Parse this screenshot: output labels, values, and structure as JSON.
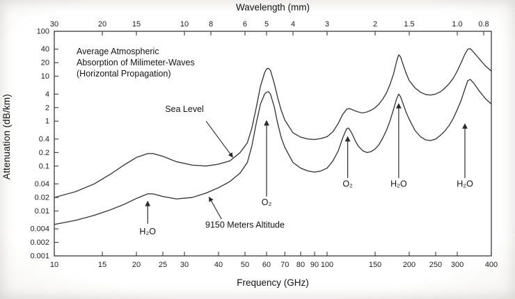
{
  "figure": {
    "title_lines": [
      "Average Atmospheric",
      "Absorption of Milimeter-Waves",
      "(Horizontal Propagation)"
    ],
    "top_axis": {
      "label": "Wavelength (mm)",
      "ticks": [
        "30",
        "20",
        "15",
        "10",
        "8",
        "6",
        "5",
        "4",
        "3",
        "2",
        "1.5",
        "1.0",
        "0.8"
      ],
      "unit": "mm"
    },
    "x_axis": {
      "label": "Frequency (GHz)",
      "ticks": [
        "10",
        "15",
        "20",
        "25",
        "30",
        "40",
        "50",
        "60",
        "70",
        "80",
        "90",
        "100",
        "150",
        "200",
        "250",
        "300",
        "400"
      ],
      "min": 10,
      "max": 400,
      "scale": "log"
    },
    "y_axis": {
      "label": "Attenuation (dB/km)",
      "ticks": [
        "100",
        "40",
        "20",
        "10",
        "4",
        "2",
        "1",
        "0.4",
        "0.2",
        "0.1",
        "0.04",
        "0.02",
        "0.01",
        "0.004",
        "0.002",
        "0.001"
      ],
      "min": 0.001,
      "max": 100,
      "scale": "log"
    },
    "ink_color": "#3a3a3a"
  },
  "chart_data": {
    "type": "line",
    "title": "Average Atmospheric Absorption of Milimeter-Waves (Horizontal Propagation)",
    "xlabel": "Frequency (GHz)",
    "ylabel": "Attenuation (dB/km)",
    "x2label": "Wavelength (mm)",
    "xlim": [
      10,
      400
    ],
    "ylim": [
      0.001,
      100
    ],
    "xscale": "log",
    "yscale": "log",
    "grid": false,
    "series": [
      {
        "name": "Sea Level",
        "points": [
          [
            10,
            0.02
          ],
          [
            12,
            0.027
          ],
          [
            14,
            0.04
          ],
          [
            16,
            0.065
          ],
          [
            18,
            0.105
          ],
          [
            20,
            0.155
          ],
          [
            22,
            0.19
          ],
          [
            23,
            0.19
          ],
          [
            25,
            0.165
          ],
          [
            28,
            0.125
          ],
          [
            32,
            0.105
          ],
          [
            36,
            0.1
          ],
          [
            40,
            0.11
          ],
          [
            44,
            0.13
          ],
          [
            48,
            0.2
          ],
          [
            51,
            0.33
          ],
          [
            53,
            0.7
          ],
          [
            55,
            2.0
          ],
          [
            57,
            6.0
          ],
          [
            59,
            12
          ],
          [
            60,
            14.5
          ],
          [
            61,
            15
          ],
          [
            62,
            13.5
          ],
          [
            64,
            7.0
          ],
          [
            66,
            3.2
          ],
          [
            68,
            1.7
          ],
          [
            70,
            1.05
          ],
          [
            75,
            0.55
          ],
          [
            80,
            0.44
          ],
          [
            85,
            0.4
          ],
          [
            90,
            0.39
          ],
          [
            95,
            0.41
          ],
          [
            100,
            0.45
          ],
          [
            105,
            0.58
          ],
          [
            110,
            0.9
          ],
          [
            114,
            1.4
          ],
          [
            118,
            1.85
          ],
          [
            121,
            1.9
          ],
          [
            125,
            1.75
          ],
          [
            130,
            1.6
          ],
          [
            135,
            1.52
          ],
          [
            140,
            1.6
          ],
          [
            145,
            1.75
          ],
          [
            150,
            2.0
          ],
          [
            155,
            2.4
          ],
          [
            160,
            3.1
          ],
          [
            165,
            4.2
          ],
          [
            170,
            6.5
          ],
          [
            175,
            11
          ],
          [
            180,
            22
          ],
          [
            183,
            30
          ],
          [
            186,
            27
          ],
          [
            190,
            18
          ],
          [
            195,
            11.5
          ],
          [
            200,
            8.0
          ],
          [
            210,
            5.5
          ],
          [
            220,
            4.4
          ],
          [
            230,
            3.9
          ],
          [
            240,
            3.8
          ],
          [
            250,
            4.0
          ],
          [
            260,
            4.5
          ],
          [
            270,
            5.4
          ],
          [
            280,
            6.8
          ],
          [
            290,
            9.0
          ],
          [
            300,
            13
          ],
          [
            310,
            20
          ],
          [
            320,
            31
          ],
          [
            328,
            40
          ],
          [
            335,
            41
          ],
          [
            345,
            34
          ],
          [
            360,
            25
          ],
          [
            380,
            17
          ],
          [
            400,
            13
          ]
        ]
      },
      {
        "name": "9150 Meters Altitude",
        "points": [
          [
            10,
            0.005
          ],
          [
            12,
            0.0062
          ],
          [
            14,
            0.008
          ],
          [
            16,
            0.0105
          ],
          [
            18,
            0.014
          ],
          [
            20,
            0.019
          ],
          [
            22,
            0.024
          ],
          [
            23,
            0.024
          ],
          [
            25,
            0.021
          ],
          [
            28,
            0.0185
          ],
          [
            32,
            0.02
          ],
          [
            36,
            0.025
          ],
          [
            40,
            0.033
          ],
          [
            44,
            0.045
          ],
          [
            48,
            0.07
          ],
          [
            51,
            0.12
          ],
          [
            53,
            0.28
          ],
          [
            55,
            0.9
          ],
          [
            57,
            2.4
          ],
          [
            59,
            4.0
          ],
          [
            60,
            4.4
          ],
          [
            61,
            4.5
          ],
          [
            62,
            4.0
          ],
          [
            64,
            2.1
          ],
          [
            66,
            0.85
          ],
          [
            68,
            0.42
          ],
          [
            70,
            0.26
          ],
          [
            75,
            0.12
          ],
          [
            80,
            0.09
          ],
          [
            85,
            0.078
          ],
          [
            90,
            0.073
          ],
          [
            95,
            0.078
          ],
          [
            100,
            0.09
          ],
          [
            105,
            0.13
          ],
          [
            110,
            0.22
          ],
          [
            114,
            0.42
          ],
          [
            118,
            0.68
          ],
          [
            120,
            0.7
          ],
          [
            123,
            0.55
          ],
          [
            127,
            0.36
          ],
          [
            130,
            0.28
          ],
          [
            135,
            0.22
          ],
          [
            140,
            0.2
          ],
          [
            145,
            0.21
          ],
          [
            150,
            0.24
          ],
          [
            155,
            0.3
          ],
          [
            160,
            0.42
          ],
          [
            165,
            0.62
          ],
          [
            170,
            1.0
          ],
          [
            175,
            1.8
          ],
          [
            180,
            3.2
          ],
          [
            183,
            4.0
          ],
          [
            186,
            3.5
          ],
          [
            190,
            2.4
          ],
          [
            195,
            1.55
          ],
          [
            200,
            1.1
          ],
          [
            210,
            0.62
          ],
          [
            220,
            0.45
          ],
          [
            230,
            0.38
          ],
          [
            240,
            0.37
          ],
          [
            250,
            0.4
          ],
          [
            260,
            0.48
          ],
          [
            270,
            0.6
          ],
          [
            280,
            0.8
          ],
          [
            290,
            1.15
          ],
          [
            300,
            1.8
          ],
          [
            310,
            2.9
          ],
          [
            320,
            5.2
          ],
          [
            328,
            8.0
          ],
          [
            335,
            8.5
          ],
          [
            345,
            7.0
          ],
          [
            360,
            4.8
          ],
          [
            380,
            3.2
          ],
          [
            400,
            2.4
          ]
        ]
      }
    ],
    "annotations": {
      "curve_labels": [
        {
          "text": "Sea Level",
          "f": 30,
          "a": 1.6,
          "arrow_from": [
            36,
            1.0
          ],
          "arrow_to": [
            45,
            0.16
          ]
        },
        {
          "text": "9150 Meters Altitude",
          "f": 50,
          "a": 0.0042,
          "arrow_from": [
            41,
            0.0066
          ],
          "arrow_to": [
            37,
            0.02
          ]
        }
      ],
      "peaks": [
        {
          "text": "H₂O",
          "f": 22,
          "label_a": 0.003,
          "base_a": 0.0052,
          "tip_a": 0.016
        },
        {
          "text": "O₂",
          "f": 60,
          "label_a": 0.0135,
          "base_a": 0.021,
          "tip_a": 1.0
        },
        {
          "text": "O₂",
          "f": 119,
          "label_a": 0.035,
          "base_a": 0.054,
          "tip_a": 0.44
        },
        {
          "text": "H₂O",
          "f": 183,
          "label_a": 0.035,
          "base_a": 0.054,
          "tip_a": 2.4
        },
        {
          "text": "H₂O",
          "f": 320,
          "label_a": 0.035,
          "base_a": 0.054,
          "tip_a": 0.85
        }
      ]
    }
  }
}
